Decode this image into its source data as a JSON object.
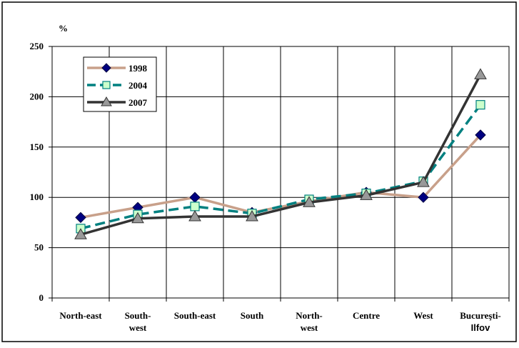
{
  "chart_data": {
    "type": "line",
    "ylabel": "%",
    "ylim": [
      0,
      250
    ],
    "yticks": [
      0,
      50,
      100,
      150,
      200,
      250
    ],
    "grid": true,
    "legend_position": "top-left",
    "categories": [
      [
        "North-east"
      ],
      [
        "South-",
        "west"
      ],
      [
        "South-east"
      ],
      [
        "South"
      ],
      [
        "North-",
        "west"
      ],
      [
        "Centre"
      ],
      [
        "West"
      ],
      [
        "Bucureşti-",
        "Ilfov"
      ]
    ],
    "series": [
      {
        "name": "1998",
        "color": "#c8a08a",
        "marker": "diamond",
        "marker_color": "#000080",
        "line_style": "solid",
        "values": [
          80,
          90,
          100,
          85,
          96,
          105,
          100,
          162
        ]
      },
      {
        "name": "2004",
        "color": "#008080",
        "marker": "square",
        "marker_color": "#ccffcc",
        "line_style": "dashed",
        "values": [
          69,
          83,
          91,
          84,
          98,
          104,
          116,
          192
        ]
      },
      {
        "name": "2007",
        "color": "#333333",
        "marker": "triangle",
        "marker_color": "#999999",
        "line_style": "solid",
        "values": [
          63,
          79,
          81,
          81,
          95,
          102,
          115,
          222
        ]
      }
    ]
  }
}
